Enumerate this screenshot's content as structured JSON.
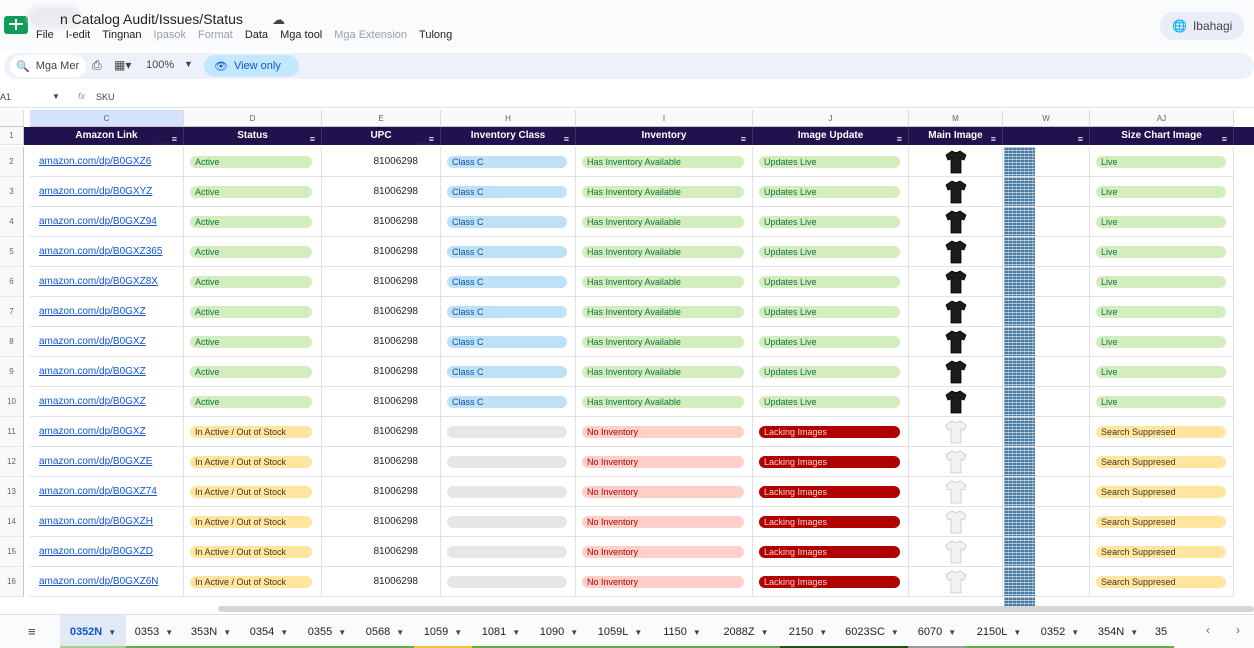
{
  "title": {
    "doc_name": "n Catalog Audit/Issues/Status",
    "share_label": "Ibahagi"
  },
  "menu": [
    "File",
    "I-edit",
    "Tingnan",
    "Ipasok",
    "Format",
    "Data",
    "Mga tool",
    "Mga Extension",
    "Tulong"
  ],
  "menu_disabled": [
    false,
    false,
    false,
    true,
    true,
    false,
    false,
    true,
    false
  ],
  "toolbar": {
    "search_label": "Mga Mer",
    "zoom": "100%",
    "view_only": "View only"
  },
  "formula": {
    "cell_ref": "A1",
    "content": "SKU"
  },
  "columns": [
    "C",
    "D",
    "E",
    "H",
    "I",
    "J",
    "M",
    "W",
    "AJ"
  ],
  "headers": [
    "Amazon Link",
    "Status",
    "UPC",
    "Inventory Class",
    "Inventory",
    "Image Update",
    "Main Image",
    "",
    "Size Chart Image"
  ],
  "rows": [
    {
      "num": "1"
    },
    {
      "num": "2",
      "link": "amazon.com/dp/B0GXZ6",
      "status": "Active",
      "upc": "81006298",
      "cls": "Class C",
      "inv": "Has Inventory Available",
      "img": "Updates Live",
      "shirt": "black",
      "size": "Live"
    },
    {
      "num": "3",
      "link": "amazon.com/dp/B0GXYZ",
      "status": "Active",
      "upc": "81006298",
      "cls": "Class C",
      "inv": "Has Inventory Available",
      "img": "Updates Live",
      "shirt": "black",
      "size": "Live"
    },
    {
      "num": "4",
      "link": "amazon.com/dp/B0GXZ94",
      "status": "Active",
      "upc": "81006298",
      "cls": "Class C",
      "inv": "Has Inventory Available",
      "img": "Updates Live",
      "shirt": "black",
      "size": "Live"
    },
    {
      "num": "5",
      "link": "amazon.com/dp/B0GXZ365",
      "status": "Active",
      "upc": "81006298",
      "cls": "Class C",
      "inv": "Has Inventory Available",
      "img": "Updates Live",
      "shirt": "black",
      "size": "Live"
    },
    {
      "num": "6",
      "link": "amazon.com/dp/B0GXZ8X",
      "status": "Active",
      "upc": "81006298",
      "cls": "Class C",
      "inv": "Has Inventory Available",
      "img": "Updates Live",
      "shirt": "black",
      "size": "Live"
    },
    {
      "num": "7",
      "link": "amazon.com/dp/B0GXZ",
      "status": "Active",
      "upc": "81006298",
      "cls": "Class C",
      "inv": "Has Inventory Available",
      "img": "Updates Live",
      "shirt": "black",
      "size": "Live"
    },
    {
      "num": "8",
      "link": "amazon.com/dp/B0GXZ",
      "status": "Active",
      "upc": "81006298",
      "cls": "Class C",
      "inv": "Has Inventory Available",
      "img": "Updates Live",
      "shirt": "black",
      "size": "Live"
    },
    {
      "num": "9",
      "link": "amazon.com/dp/B0GXZ",
      "status": "Active",
      "upc": "81006298",
      "cls": "Class C",
      "inv": "Has Inventory Available",
      "img": "Updates Live",
      "shirt": "black",
      "size": "Live"
    },
    {
      "num": "10",
      "link": "amazon.com/dp/B0GXZ",
      "status": "Active",
      "upc": "81006298",
      "cls": "Class C",
      "inv": "Has Inventory Available",
      "img": "Updates Live",
      "shirt": "black",
      "size": "Live"
    },
    {
      "num": "11",
      "link": "amazon.com/dp/B0GXZ",
      "status": "In Active / Out of Stock",
      "upc": "81006298",
      "cls": "",
      "inv": "No Inventory",
      "img": "Lacking Images",
      "shirt": "white",
      "size": "Search Suppresed"
    },
    {
      "num": "12",
      "link": "amazon.com/dp/B0GXZE",
      "status": "In Active / Out of Stock",
      "upc": "81006298",
      "cls": "",
      "inv": "No Inventory",
      "img": "Lacking Images",
      "shirt": "white",
      "size": "Search Suppresed"
    },
    {
      "num": "13",
      "link": "amazon.com/dp/B0GXZ74",
      "status": "In Active / Out of Stock",
      "upc": "81006298",
      "cls": "",
      "inv": "No Inventory",
      "img": "Lacking Images",
      "shirt": "white",
      "size": "Search Suppresed"
    },
    {
      "num": "14",
      "link": "amazon.com/dp/B0GXZH",
      "status": "In Active / Out of Stock",
      "upc": "81006298",
      "cls": "",
      "inv": "No Inventory",
      "img": "Lacking Images",
      "shirt": "white",
      "size": "Search Suppresed"
    },
    {
      "num": "15",
      "link": "amazon.com/dp/B0GXZD",
      "status": "In Active / Out of Stock",
      "upc": "81006298",
      "cls": "",
      "inv": "No Inventory",
      "img": "Lacking Images",
      "shirt": "white",
      "size": "Search Suppresed"
    },
    {
      "num": "16",
      "link": "amazon.com/dp/B0GXZ6N",
      "status": "In Active / Out of Stock",
      "upc": "81006298",
      "cls": "",
      "inv": "No Inventory",
      "img": "Lacking Images",
      "shirt": "white",
      "size": "Search Suppresed"
    }
  ],
  "chip_colors": {
    "Active": {
      "bg": "#d4edbc",
      "fg": "#11734b"
    },
    "In Active / Out of Stock": {
      "bg": "#ffe5a0",
      "fg": "#473821"
    },
    "Class C": {
      "bg": "#bfe1f6",
      "fg": "#0a53a8"
    },
    "empty": {
      "bg": "#e6e6e6",
      "fg": "#444"
    },
    "Has Inventory Available": {
      "bg": "#d4edbc",
      "fg": "#11734b"
    },
    "No Inventory": {
      "bg": "#ffcfc9",
      "fg": "#b10202"
    },
    "Updates Live": {
      "bg": "#d4edbc",
      "fg": "#11734b"
    },
    "Lacking Images": {
      "bg": "#b10202",
      "fg": "#ffcfc9"
    },
    "Live": {
      "bg": "#d4edbc",
      "fg": "#11734b"
    },
    "Search Suppresed": {
      "bg": "#ffe5a0",
      "fg": "#473821"
    }
  },
  "tabs": [
    {
      "label": "0352N",
      "active": true,
      "color": "#a8d08d"
    },
    {
      "label": "0353",
      "color": "#6aa84f"
    },
    {
      "label": "353N",
      "color": "#6aa84f"
    },
    {
      "label": "0354",
      "color": "#6aa84f"
    },
    {
      "label": "0355",
      "color": "#6aa84f"
    },
    {
      "label": "0568",
      "color": "#6aa84f"
    },
    {
      "label": "1059",
      "color": "#f1c232"
    },
    {
      "label": "1081",
      "color": "#6aa84f"
    },
    {
      "label": "1090",
      "color": "#6aa84f"
    },
    {
      "label": "1059L",
      "color": "#6aa84f"
    },
    {
      "label": "1150",
      "color": "#6aa84f"
    },
    {
      "label": "2088Z",
      "color": "#6aa84f"
    },
    {
      "label": "2150",
      "color": "#274e13"
    },
    {
      "label": "6023SC",
      "color": "#274e13"
    },
    {
      "label": "6070",
      "color": "#999999"
    },
    {
      "label": "2150L",
      "color": "#6aa84f"
    },
    {
      "label": "0352",
      "color": "#6aa84f"
    },
    {
      "label": "354N",
      "color": "#6aa84f"
    },
    {
      "label": "35",
      "color": "#6aa84f"
    }
  ]
}
